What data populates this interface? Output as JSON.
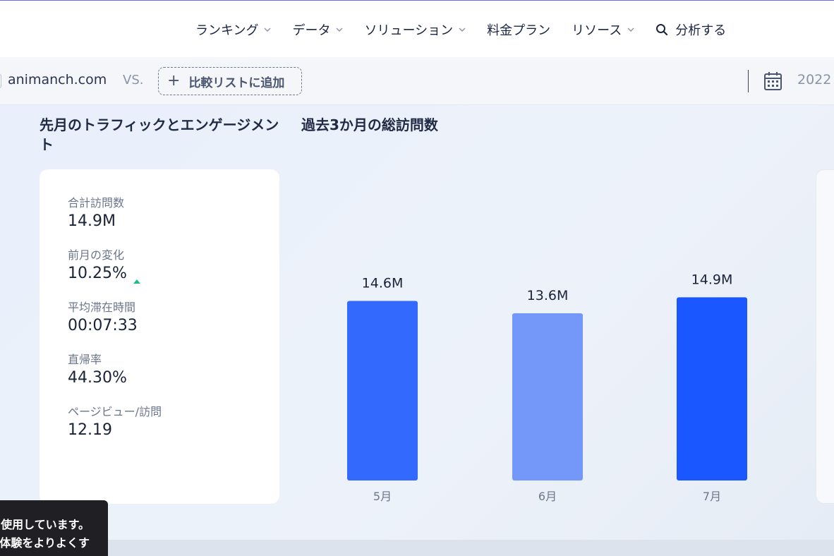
{
  "nav": {
    "items": [
      {
        "label": "ランキング",
        "has_dropdown": true
      },
      {
        "label": "データ",
        "has_dropdown": true
      },
      {
        "label": "ソリューション",
        "has_dropdown": true
      },
      {
        "label": "料金プラン",
        "has_dropdown": false
      },
      {
        "label": "リソース",
        "has_dropdown": true
      }
    ],
    "analyze_label": "分析する"
  },
  "compare_bar": {
    "site": "animanch.com",
    "vs": "VS.",
    "add_label": "比較リストに追加",
    "date_text": "2022"
  },
  "traffic": {
    "title": "先月のトラフィックとエンゲージメント",
    "stats": [
      {
        "label": "合計訪問数",
        "value": "14.9M"
      },
      {
        "label": "前月の変化",
        "value": "10.25%",
        "trend": "up"
      },
      {
        "label": "平均滞在時間",
        "value": "00:07:33"
      },
      {
        "label": "直帰率",
        "value": "44.30%"
      },
      {
        "label": "ページビュー/訪問",
        "value": "12.19"
      }
    ]
  },
  "visits_chart": {
    "title": "過去3か月の総訪問数"
  },
  "chart_data": {
    "type": "bar",
    "title": "過去3か月の総訪問数",
    "categories": [
      "5月",
      "6月",
      "7月"
    ],
    "values": [
      14.6,
      13.6,
      14.9
    ],
    "value_labels": [
      "14.6M",
      "13.6M",
      "14.9M"
    ],
    "unit": "M",
    "ylim": [
      0,
      21
    ],
    "grid": false,
    "colors": [
      "#3469fd",
      "#7398f9",
      "#1b57fe"
    ]
  },
  "cookie_banner": {
    "lines": [
      "使用しています。",
      "体験をよりよくす",
      "..."
    ]
  },
  "colors": {
    "accent": "#6d6ce0",
    "trend_up": "#1bbf80",
    "card_bg": "#ffffff"
  }
}
